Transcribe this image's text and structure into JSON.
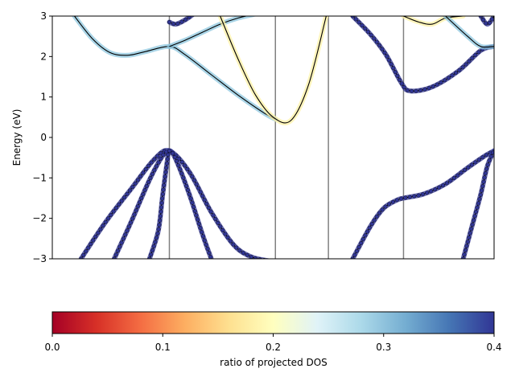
{
  "chart_data": {
    "type": "line",
    "title": "",
    "xlabel": "",
    "ylabel": "Energy (eV)",
    "ylim": [
      -3,
      3
    ],
    "xlim": [
      0,
      1
    ],
    "grid": false,
    "legend": "none",
    "yticks": [
      "3",
      "2",
      "1",
      "0",
      "−1",
      "−2",
      "−3"
    ],
    "ytick_values": [
      3,
      2,
      1,
      0,
      -1,
      -2,
      -3
    ],
    "kpoint_lines": [
      0.265,
      0.505,
      0.625,
      0.795
    ],
    "bands": [
      {
        "name": "",
        "color": "#8dc7df",
        "dos_ratio": 0.3,
        "x": [
          0.05,
          0.09,
          0.13,
          0.17,
          0.21,
          0.265,
          0.3,
          0.36,
          0.42,
          0.48,
          0.505
        ],
        "y": [
          3.0,
          2.45,
          2.1,
          2.03,
          2.12,
          2.25,
          2.05,
          1.55,
          1.05,
          0.6,
          0.45
        ]
      },
      {
        "name": "",
        "color": "#8dc7df",
        "dos_ratio": 0.3,
        "x": [
          0.265,
          0.3,
          0.34,
          0.38,
          0.42,
          0.46
        ],
        "y": [
          2.25,
          2.4,
          2.6,
          2.8,
          2.95,
          3.05
        ]
      },
      {
        "name": "",
        "color": "#fff2a6",
        "dos_ratio": 0.2,
        "x": [
          0.38,
          0.42,
          0.46,
          0.5,
          0.54,
          0.58,
          0.62
        ],
        "y": [
          3.0,
          1.95,
          1.05,
          0.5,
          0.42,
          1.3,
          3.0
        ]
      },
      {
        "name": "",
        "color": "#fff2a6",
        "dos_ratio": 0.2,
        "x": [
          0.795,
          0.83,
          0.86,
          0.89,
          0.93
        ],
        "y": [
          3.0,
          2.85,
          2.8,
          2.95,
          3.0
        ]
      },
      {
        "name": "",
        "color": "#313695",
        "dos_ratio": 0.4,
        "x": [
          0.265,
          0.28,
          0.3,
          0.32
        ],
        "y": [
          2.85,
          2.8,
          2.9,
          3.05
        ]
      },
      {
        "name": "",
        "color": "#313695",
        "dos_ratio": 0.4,
        "x": [
          0.065,
          0.12,
          0.18,
          0.23,
          0.265,
          0.31,
          0.36,
          0.41,
          0.45,
          0.49
        ],
        "y": [
          -3.0,
          -2.1,
          -1.25,
          -0.55,
          -0.33,
          -0.85,
          -1.85,
          -2.65,
          -2.95,
          -3.05
        ]
      },
      {
        "name": "",
        "color": "#313695",
        "dos_ratio": 0.4,
        "x": [
          0.14,
          0.18,
          0.22,
          0.25,
          0.265
        ],
        "y": [
          -3.0,
          -2.05,
          -1.05,
          -0.45,
          -0.33
        ]
      },
      {
        "name": "",
        "color": "#313695",
        "dos_ratio": 0.4,
        "x": [
          0.22,
          0.24,
          0.25,
          0.26,
          0.265,
          0.28,
          0.31,
          0.34,
          0.36
        ],
        "y": [
          -3.0,
          -2.3,
          -1.4,
          -0.6,
          -0.33,
          -0.55,
          -1.4,
          -2.4,
          -3.0
        ]
      },
      {
        "name": "",
        "color": "#313695",
        "dos_ratio": 0.4,
        "x": [
          0.68,
          0.72,
          0.75,
          0.78,
          0.795,
          0.84,
          0.89,
          0.94,
          0.98,
          1.0
        ],
        "y": [
          -3.0,
          -2.2,
          -1.75,
          -1.55,
          -1.5,
          -1.4,
          -1.15,
          -0.75,
          -0.45,
          -0.33
        ]
      },
      {
        "name": "",
        "color": "#313695",
        "dos_ratio": 0.4,
        "x": [
          0.93,
          0.95,
          0.97,
          0.985,
          1.0
        ],
        "y": [
          -3.0,
          -2.2,
          -1.4,
          -0.7,
          -0.33
        ]
      },
      {
        "name": "",
        "color": "#313695",
        "dos_ratio": 0.4,
        "x": [
          0.68,
          0.72,
          0.755,
          0.79,
          0.81,
          0.86,
          0.92,
          0.97,
          1.0
        ],
        "y": [
          3.0,
          2.55,
          2.05,
          1.35,
          1.15,
          1.25,
          1.65,
          2.15,
          2.25
        ]
      },
      {
        "name": "",
        "color": "#8dc7df",
        "dos_ratio": 0.3,
        "x": [
          0.89,
          0.94,
          0.97,
          1.0
        ],
        "y": [
          3.0,
          2.5,
          2.25,
          2.25
        ]
      },
      {
        "name": "",
        "color": "#313695",
        "dos_ratio": 0.4,
        "x": [
          0.97,
          0.985,
          1.0
        ],
        "y": [
          3.0,
          2.8,
          3.0
        ]
      }
    ],
    "colorbar": {
      "label": "ratio of projected DOS",
      "ticks": [
        "0.0",
        "0.1",
        "0.2",
        "0.3",
        "0.4"
      ],
      "tick_values": [
        0.0,
        0.1,
        0.2,
        0.3,
        0.4
      ],
      "range": [
        0.0,
        0.4
      ],
      "colormap": "RdYlBu",
      "stops": [
        "#a50026",
        "#d73027",
        "#f46d43",
        "#fdae61",
        "#fee090",
        "#ffffbf",
        "#e0f3f8",
        "#abd9e9",
        "#74add1",
        "#4575b4",
        "#313695"
      ]
    }
  }
}
